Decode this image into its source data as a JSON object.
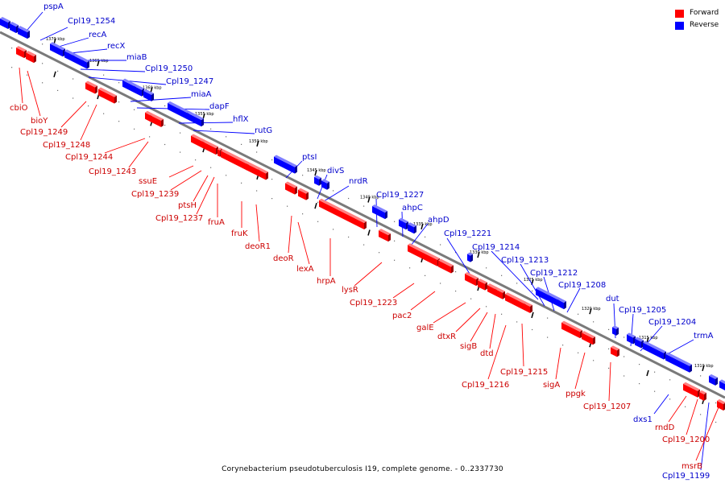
{
  "caption": "Corynebacterium pseudotuberculosis I19, complete genome. - 0..2337730",
  "colors": {
    "forward_fill": "#ff0000",
    "forward_label": "#cc0000",
    "reverse_fill": "#0000ff",
    "reverse_label": "#0000cc",
    "backbone": "#7a7a7a"
  },
  "legend": [
    {
      "label": "Forward",
      "color": "#ff0000"
    },
    {
      "label": "Reverse",
      "color": "#0000ff"
    }
  ],
  "kbp_ticks": [
    "1370 kbp",
    "1365 kbp",
    "1360 kbp",
    "1355 kbp",
    "1350 kbp",
    "1345 kbp",
    "1340 kbp",
    "1335 kbp",
    "1330 kbp",
    "1325 kbp",
    "1320 kbp",
    "1315 kbp",
    "1310 kbp"
  ],
  "reverse_genes": [
    "pspA",
    "Cpl19_1254",
    "recA",
    "recX",
    "miaB",
    "Cpl19_1250",
    "Cpl19_1247",
    "miaA",
    "dapF",
    "hflX",
    "rutG",
    "ptsI",
    "divS",
    "nrdR",
    "Cpl19_1227",
    "ahpC",
    "ahpD",
    "Cpl19_1221",
    "Cpl19_1214",
    "Cpl19_1213",
    "Cpl19_1212",
    "Cpl19_1208",
    "dut",
    "Cpl19_1205",
    "Cpl19_1204",
    "trmA",
    "dxs1",
    "Cpl19_1199"
  ],
  "forward_genes": [
    "cbiO",
    "bioY",
    "Cpl19_1249",
    "Cpl19_1248",
    "Cpl19_1244",
    "Cpl19_1243",
    "ssuE",
    "Cpl19_1239",
    "ptsH",
    "Cpl19_1237",
    "fruA",
    "fruK",
    "deoR1",
    "deoR",
    "lexA",
    "hrpA",
    "lysR",
    "Cpl19_1223",
    "pac2",
    "galE",
    "dtxR",
    "sigB",
    "dtd",
    "Cpl19_1215",
    "Cpl19_1216",
    "sigA",
    "ppgk",
    "Cpl19_1207",
    "rndD",
    "Cpl19_1200",
    "msrB"
  ]
}
